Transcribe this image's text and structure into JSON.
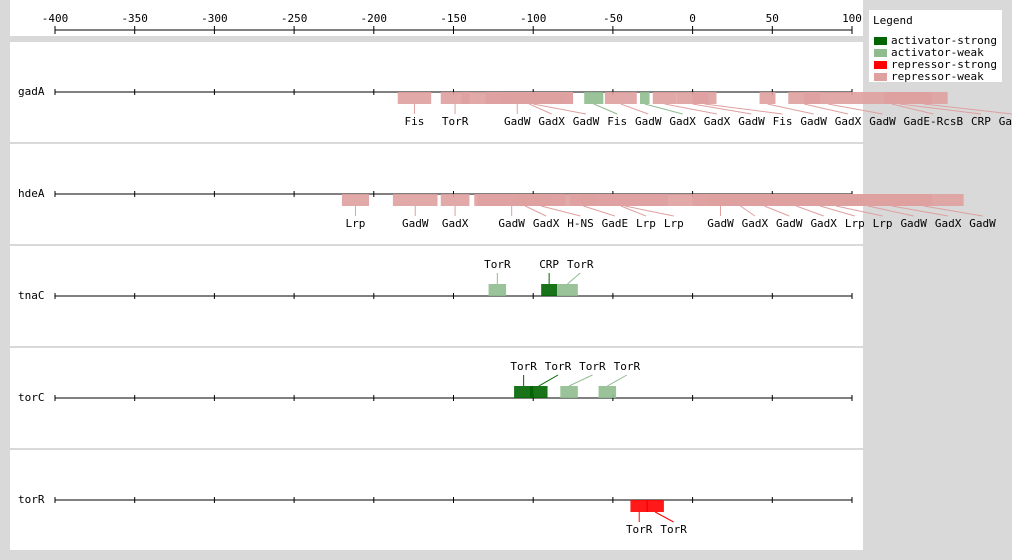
{
  "axis": {
    "xlim": [
      -400,
      100
    ],
    "xticks": [
      -400,
      -350,
      -300,
      -250,
      -200,
      -150,
      -100,
      -50,
      0,
      50,
      100
    ]
  },
  "legend": {
    "title": "Legend",
    "items": [
      {
        "label": "activator-strong",
        "color": "#006400"
      },
      {
        "label": "activator-weak",
        "color": "#8fbc8f"
      },
      {
        "label": "repressor-strong",
        "color": "#ff0000"
      },
      {
        "label": "repressor-weak",
        "color": "#dfa0a0"
      }
    ]
  },
  "tracks": [
    {
      "gene": "gadA",
      "label_side": "below",
      "sites": [
        {
          "label": "Fis",
          "start": -185,
          "end": -164,
          "color": "#dfa0a0"
        },
        {
          "label": "TorR",
          "start": -158,
          "end": -140,
          "color": "#dfa0a0"
        },
        {
          "label": "GadW",
          "start": -145,
          "end": -75,
          "color": "#dfa0a0"
        },
        {
          "label": "GadX",
          "start": -130,
          "end": -75,
          "color": "#dfa0a0"
        },
        {
          "label": "GadW",
          "start": -120,
          "end": -80,
          "color": "#dfa0a0"
        },
        {
          "label": "Fis",
          "start": -68,
          "end": -56,
          "color": "#8fbc8f"
        },
        {
          "label": "GadW",
          "start": -55,
          "end": -35,
          "color": "#dfa0a0"
        },
        {
          "label": "GadX",
          "start": -33,
          "end": -27,
          "color": "#8fbc8f"
        },
        {
          "label": "GadX",
          "start": -25,
          "end": -10,
          "color": "#dfa0a0"
        },
        {
          "label": "GadW",
          "start": -10,
          "end": 10,
          "color": "#dfa0a0"
        },
        {
          "label": "Fis",
          "start": 0,
          "end": 15,
          "color": "#dfa0a0"
        },
        {
          "label": "GadW",
          "start": 42,
          "end": 52,
          "color": "#dfa0a0"
        },
        {
          "label": "GadX",
          "start": 60,
          "end": 80,
          "color": "#dfa0a0"
        },
        {
          "label": "GadW",
          "start": 70,
          "end": 100,
          "color": "#dfa0a0"
        },
        {
          "label": "GadE-RcsB",
          "start": 100,
          "end": 150,
          "color": "#dfa0a0"
        },
        {
          "label": "CRP",
          "start": 120,
          "end": 140,
          "color": "#dfa0a0"
        },
        {
          "label": "GadW",
          "start": 130,
          "end": 160,
          "color": "#dfa0a0"
        }
      ]
    },
    {
      "gene": "hdeA",
      "label_side": "below",
      "sites": [
        {
          "label": "Lrp",
          "start": -220,
          "end": -203,
          "color": "#dfa0a0"
        },
        {
          "label": "GadW",
          "start": -188,
          "end": -160,
          "color": "#dfa0a0"
        },
        {
          "label": "GadX",
          "start": -158,
          "end": -140,
          "color": "#dfa0a0"
        },
        {
          "label": "GadW",
          "start": -137,
          "end": -90,
          "color": "#dfa0a0"
        },
        {
          "label": "GadX",
          "start": -135,
          "end": -75,
          "color": "#dfa0a0"
        },
        {
          "label": "H-NS",
          "start": -110,
          "end": -80,
          "color": "#dfa0a0"
        },
        {
          "label": "GadE",
          "start": -77,
          "end": -60,
          "color": "#dfa0a0"
        },
        {
          "label": "Lrp",
          "start": -75,
          "end": -15,
          "color": "#dfa0a0"
        },
        {
          "label": "Lrp",
          "start": -70,
          "end": -15,
          "color": "#dfa0a0"
        },
        {
          "label": "GadW",
          "start": -15,
          "end": 50,
          "color": "#dfa0a0"
        },
        {
          "label": "GadX",
          "start": 0,
          "end": 60,
          "color": "#dfa0a0"
        },
        {
          "label": "GadW",
          "start": 10,
          "end": 80,
          "color": "#dfa0a0"
        },
        {
          "label": "GadX",
          "start": 30,
          "end": 100,
          "color": "#dfa0a0"
        },
        {
          "label": "Lrp",
          "start": 50,
          "end": 110,
          "color": "#dfa0a0"
        },
        {
          "label": "Lrp",
          "start": 60,
          "end": 120,
          "color": "#dfa0a0"
        },
        {
          "label": "GadW",
          "start": 80,
          "end": 140,
          "color": "#dfa0a0"
        },
        {
          "label": "GadX",
          "start": 100,
          "end": 150,
          "color": "#dfa0a0"
        },
        {
          "label": "GadW",
          "start": 120,
          "end": 170,
          "color": "#dfa0a0"
        }
      ]
    },
    {
      "gene": "tnaC",
      "label_side": "above",
      "sites": [
        {
          "label": "TorR",
          "start": -128,
          "end": -117,
          "color": "#8fbc8f"
        },
        {
          "label": "CRP",
          "start": -95,
          "end": -85,
          "color": "#006400"
        },
        {
          "label": "TorR",
          "start": -85,
          "end": -72,
          "color": "#8fbc8f"
        }
      ]
    },
    {
      "gene": "torC",
      "label_side": "above",
      "sites": [
        {
          "label": "TorR",
          "start": -112,
          "end": -100,
          "color": "#006400"
        },
        {
          "label": "TorR",
          "start": -102,
          "end": -91,
          "color": "#006400"
        },
        {
          "label": "TorR",
          "start": -83,
          "end": -72,
          "color": "#8fbc8f"
        },
        {
          "label": "TorR",
          "start": -59,
          "end": -48,
          "color": "#8fbc8f"
        }
      ]
    },
    {
      "gene": "torR",
      "label_side": "below",
      "sites": [
        {
          "label": "TorR",
          "start": -39,
          "end": -28,
          "color": "#ff0000"
        },
        {
          "label": "TorR",
          "start": -29,
          "end": -18,
          "color": "#ff0000"
        }
      ]
    }
  ]
}
